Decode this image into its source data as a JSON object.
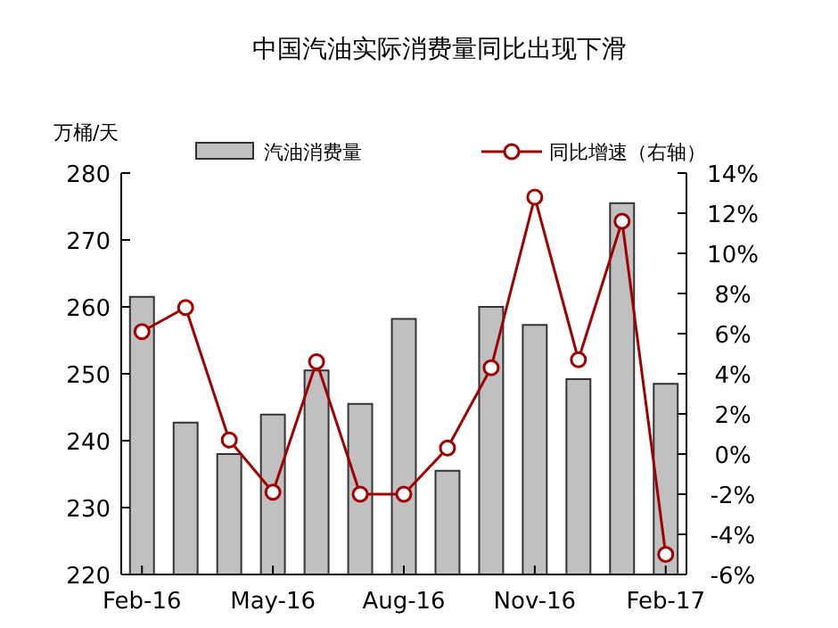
{
  "chart_data": {
    "type": "bar",
    "title": "中国汽油实际消费量同比出现下滑",
    "ylabel": "万桶/天",
    "categories": [
      "Feb-16",
      null,
      null,
      "May-16",
      null,
      null,
      "Aug-16",
      null,
      null,
      "Nov-16",
      null,
      null,
      "Feb-17"
    ],
    "series": [
      {
        "name": "汽油消费量",
        "color": "#c0c0c0",
        "values": [
          261.5,
          242.7,
          238,
          243.9,
          250.5,
          245.5,
          258.2,
          235.5,
          260,
          257.3,
          249.2,
          275.5,
          248.5
        ]
      },
      {
        "name": "同比增速（右轴）",
        "type": "line",
        "axis": "y2",
        "color": "#a00000",
        "values": [
          6.1,
          7.3,
          0.7,
          -1.9,
          4.6,
          -2.0,
          -2.0,
          0.3,
          4.3,
          12.8,
          4.7,
          11.6,
          -5.0
        ]
      }
    ],
    "ylim": [
      220,
      280
    ],
    "yticks": [
      220,
      230,
      240,
      250,
      260,
      270,
      280
    ],
    "y2lim": [
      -6,
      14
    ],
    "y2ticks": [
      {
        "value": -6,
        "label": "-6%"
      },
      {
        "value": -4,
        "label": "-4%"
      },
      {
        "value": -2,
        "label": "-2%"
      },
      {
        "value": 0,
        "label": "0%"
      },
      {
        "value": 2,
        "label": "2%"
      },
      {
        "value": 4,
        "label": "4%"
      },
      {
        "value": 6,
        "label": "6%"
      },
      {
        "value": 8,
        "label": "8%"
      },
      {
        "value": 10,
        "label": "10%"
      },
      {
        "value": 12,
        "label": "12%"
      },
      {
        "value": 14,
        "label": "14%"
      }
    ],
    "legend": "top",
    "marker": "circle",
    "grid": false
  }
}
